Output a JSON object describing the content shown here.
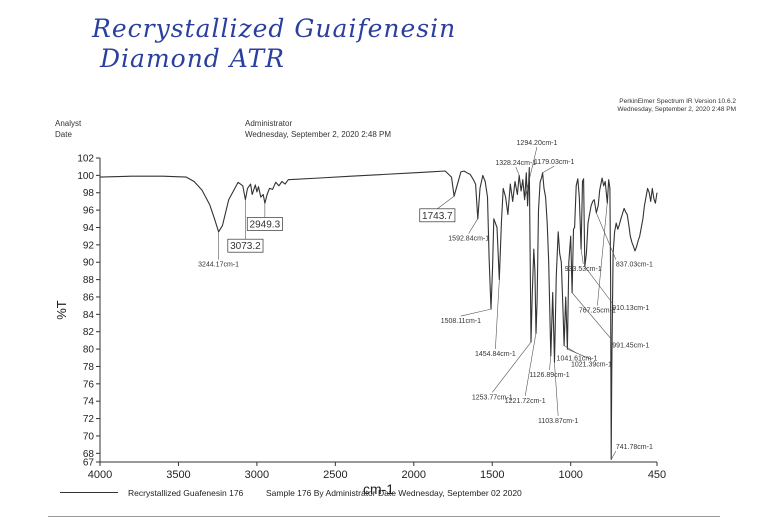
{
  "handwritten": {
    "line1": "Recrystallized Guaifenesin",
    "line2": "Diamond ATR"
  },
  "header": {
    "analyst_label": "Analyst",
    "analyst_value": "Administrator",
    "date_label": "Date",
    "date_value": "Wednesday, September 2, 2020 2:48 PM",
    "software": "PerkinElmer Spectrum IR Version 10.6.2",
    "software_date": "Wednesday, September 2, 2020 2:48 PM"
  },
  "footer": {
    "legend_name": "Recrystallized Guafenesin 176",
    "sample_info": "Sample 176 By Administrator Date Wednesday, September 02 2020"
  },
  "chart_data": {
    "type": "line",
    "title": "",
    "xlabel": "cm-1",
    "ylabel": "%T",
    "xlim": [
      4000,
      450
    ],
    "ylim": [
      67,
      102
    ],
    "x_ticks": [
      4000,
      3500,
      3000,
      2500,
      2000,
      1500,
      1000,
      450
    ],
    "y_ticks": [
      67,
      68,
      70,
      72,
      74,
      76,
      78,
      80,
      82,
      84,
      86,
      88,
      90,
      92,
      94,
      96,
      98,
      100,
      102
    ],
    "grid": false,
    "legend_placement": "bottom-left",
    "line_color": "#333333",
    "series": [
      {
        "name": "Recrystallized Guafenesin 176",
        "x": [
          4000,
          3800,
          3600,
          3450,
          3400,
          3350,
          3300,
          3270,
          3244,
          3220,
          3180,
          3120,
          3090,
          3073,
          3060,
          3040,
          3030,
          3010,
          3000,
          2990,
          2975,
          2960,
          2949,
          2935,
          2920,
          2900,
          2880,
          2860,
          2840,
          2820,
          2800,
          2600,
          2400,
          2200,
          2000,
          1900,
          1800,
          1760,
          1743,
          1725,
          1700,
          1680,
          1660,
          1640,
          1620,
          1606,
          1592,
          1578,
          1560,
          1545,
          1530,
          1520,
          1508,
          1498,
          1490,
          1470,
          1455,
          1442,
          1430,
          1415,
          1400,
          1385,
          1370,
          1355,
          1340,
          1328,
          1316,
          1305,
          1294,
          1283,
          1275,
          1264,
          1253,
          1245,
          1235,
          1228,
          1221,
          1214,
          1205,
          1195,
          1185,
          1179,
          1170,
          1160,
          1150,
          1140,
          1127,
          1115,
          1103,
          1092,
          1080,
          1070,
          1060,
          1050,
          1042,
          1032,
          1021,
          1012,
          1000,
          991,
          982,
          975,
          965,
          955,
          945,
          934,
          925,
          918,
          910,
          900,
          890,
          880,
          870,
          860,
          850,
          837,
          825,
          815,
          800,
          790,
          780,
          767,
          758,
          750,
          746,
          742,
          738,
          730,
          720,
          710,
          700,
          690,
          680,
          670,
          660,
          650,
          640,
          630,
          620,
          610,
          600,
          590,
          580,
          570,
          560,
          550,
          540,
          530,
          520,
          510,
          500,
          490,
          480,
          470,
          460,
          450
        ],
        "y": [
          99.8,
          99.9,
          99.9,
          99.8,
          99.3,
          98.3,
          96.6,
          95.0,
          93.5,
          94.2,
          97.2,
          99.2,
          98.8,
          97.2,
          98.5,
          99.0,
          97.8,
          98.9,
          98.1,
          98.7,
          97.5,
          97.8,
          96.8,
          97.8,
          98.5,
          98.4,
          99.2,
          98.8,
          99.3,
          99.0,
          99.5,
          99.7,
          99.9,
          100.1,
          100.3,
          100.4,
          100.5,
          99.8,
          97.6,
          98.8,
          100.4,
          100.5,
          100.3,
          100.1,
          99.5,
          99.0,
          95.0,
          98.5,
          100.0,
          99.3,
          97.5,
          90.5,
          84.6,
          89.5,
          95.0,
          94.0,
          88.0,
          94.5,
          98.5,
          97.5,
          95.5,
          99.0,
          97.0,
          99.3,
          97.8,
          100.0,
          98.2,
          99.5,
          97.2,
          100.3,
          96.5,
          100.9,
          80.8,
          86.5,
          91.5,
          89.0,
          81.8,
          85.5,
          96.0,
          99.2,
          99.8,
          100.3,
          98.5,
          97.5,
          94.5,
          90.0,
          79.2,
          86.5,
          78.5,
          88.5,
          93.5,
          91.0,
          90.0,
          84.8,
          80.4,
          86.0,
          80.0,
          90.0,
          93.0,
          86.5,
          93.8,
          94.0,
          98.8,
          99.6,
          97.5,
          91.5,
          99.3,
          99.6,
          89.5,
          91.0,
          94.5,
          95.5,
          96.5,
          97.0,
          97.2,
          95.7,
          96.5,
          98.3,
          99.7,
          98.8,
          99.3,
          96.8,
          99.5,
          98.5,
          88.0,
          67.3,
          78.0,
          91.0,
          93.5,
          94.5,
          93.8,
          94.3,
          95.0,
          95.6,
          96.2,
          95.8,
          95.5,
          94.3,
          93.0,
          92.3,
          91.8,
          91.3,
          91.8,
          92.5,
          93.0,
          94.0,
          95.0,
          96.5,
          97.5,
          98.5,
          98.0,
          97.0,
          98.5,
          97.3,
          96.8,
          98.0
        ]
      }
    ],
    "annotations": [
      {
        "text": "3244.17cm-1",
        "x": 3244.17,
        "y": 93.5
      },
      {
        "text": "3073.2",
        "x": 3073.2,
        "y": 97.2,
        "boxed": true
      },
      {
        "text": "2949.3",
        "x": 2949.3,
        "y": 96.8,
        "boxed": true
      },
      {
        "text": "1743.7",
        "x": 1743.7,
        "y": 97.6,
        "boxed": true
      },
      {
        "text": "1592.84cm-1",
        "x": 1592.84,
        "y": 95.0
      },
      {
        "text": "1508.11cm-1",
        "x": 1508.11,
        "y": 84.6
      },
      {
        "text": "1454.84cm-1",
        "x": 1454.84,
        "y": 88.0
      },
      {
        "text": "1328.24cm-1",
        "x": 1328.24,
        "y": 100.0
      },
      {
        "text": "1294.20cm-1",
        "x": 1294.2,
        "y": 97.2
      },
      {
        "text": "1253.77cm-1",
        "x": 1253.77,
        "y": 80.8
      },
      {
        "text": "1221.72cm-1",
        "x": 1221.72,
        "y": 81.8
      },
      {
        "text": "1179.03cm-1",
        "x": 1179.03,
        "y": 100.3
      },
      {
        "text": "1126.89cm-1",
        "x": 1126.89,
        "y": 79.2
      },
      {
        "text": "1103.87cm-1",
        "x": 1103.87,
        "y": 78.5
      },
      {
        "text": "1041.61cm-1",
        "x": 1041.61,
        "y": 80.4
      },
      {
        "text": "1021.39cm-1",
        "x": 1021.39,
        "y": 80.0
      },
      {
        "text": "991.45cm-1",
        "x": 991.45,
        "y": 86.5
      },
      {
        "text": "933.53cm-1",
        "x": 933.53,
        "y": 91.5
      },
      {
        "text": "910.13cm-1",
        "x": 910.13,
        "y": 89.5
      },
      {
        "text": "837.03cm-1",
        "x": 837.03,
        "y": 95.7
      },
      {
        "text": "767.25cm-1",
        "x": 767.25,
        "y": 96.8
      },
      {
        "text": "741.78cm-1",
        "x": 741.78,
        "y": 67.3
      }
    ]
  }
}
